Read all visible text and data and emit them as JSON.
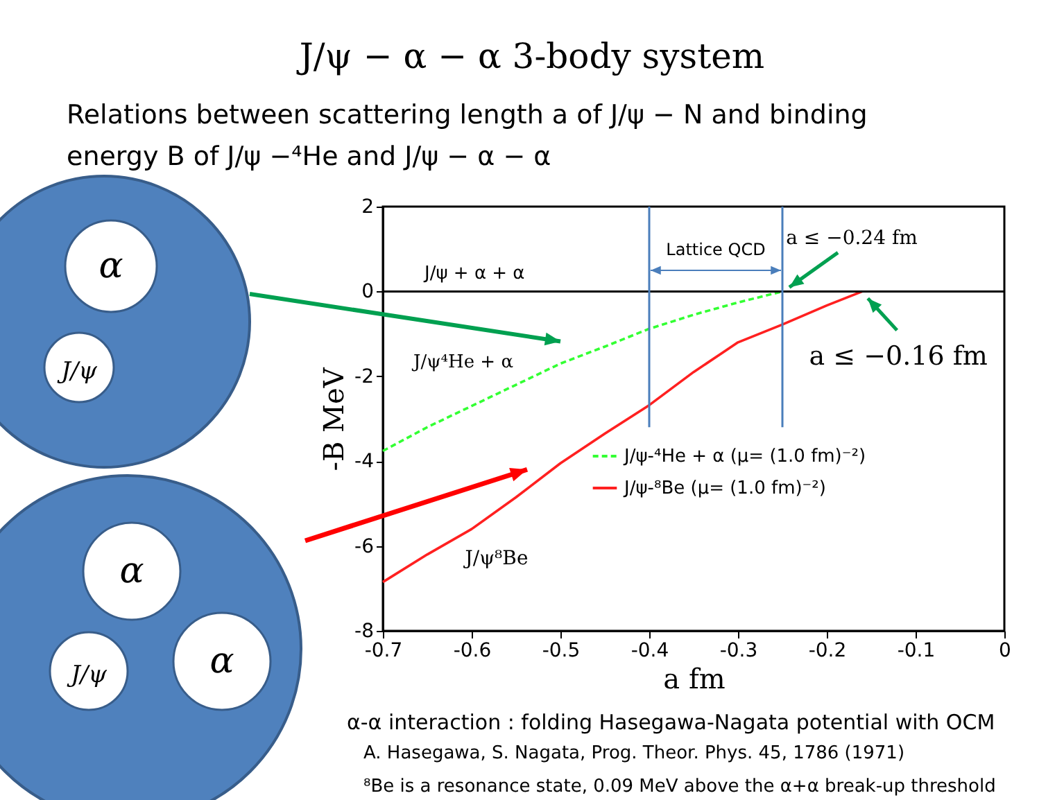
{
  "chart_data": {
    "type": "line",
    "title": "J/ψ − α − α  3-body system",
    "subtitle": "Relations between scattering length a of J/ψ − N and binding energy B of J/ψ −⁴He and J/ψ − α − α",
    "xlabel": "a  fm",
    "ylabel": "-B  MeV",
    "xlim": [
      -0.7,
      0
    ],
    "ylim": [
      -8,
      2
    ],
    "xticks": [
      -0.7,
      -0.6,
      -0.5,
      -0.4,
      -0.3,
      -0.2,
      -0.1,
      0
    ],
    "yticks": [
      -8,
      -6,
      -4,
      -2,
      0,
      2
    ],
    "grid": false,
    "legend": "right",
    "series": [
      {
        "name": "J/ψ-⁴He + α (μ= (1.0 fm)⁻²)",
        "color": "#33ff33",
        "line_style": "dashed",
        "x": [
          -0.7,
          -0.65,
          -0.6,
          -0.55,
          -0.5,
          -0.45,
          -0.4,
          -0.35,
          -0.3,
          -0.25
        ],
        "values": [
          -3.76,
          -3.2,
          -2.7,
          -2.2,
          -1.7,
          -1.3,
          -0.88,
          -0.55,
          -0.26,
          0
        ]
      },
      {
        "name": "J/ψ-⁸Be  (μ= (1.0 fm)⁻²)",
        "color": "#ff2020",
        "line_style": "solid",
        "x": [
          -0.7,
          -0.65,
          -0.6,
          -0.55,
          -0.5,
          -0.45,
          -0.4,
          -0.35,
          -0.3,
          -0.25,
          -0.2,
          -0.16
        ],
        "values": [
          -6.85,
          -6.2,
          -5.6,
          -4.85,
          -4.05,
          -3.35,
          -2.68,
          -1.9,
          -1.2,
          -0.78,
          -0.33,
          0
        ]
      }
    ],
    "ref_lines": [
      {
        "axis": "y",
        "value": 0,
        "label": "J/ψ + α + α",
        "color": "#000000"
      },
      {
        "axis": "x",
        "value": -0.4,
        "label": null,
        "color": "#4a7ebb"
      },
      {
        "axis": "x",
        "value": -0.25,
        "label": null,
        "color": "#4a7ebb"
      }
    ],
    "annotations": [
      "Lattice QCD",
      "J/ψ⁴He + α",
      "J/ψ⁸Be",
      {
        "text": "a ≤ −0.24 fm",
        "x": -0.25,
        "y": 0
      },
      {
        "text": "a ≤ −0.16 fm",
        "x": -0.16,
        "y": 0
      },
      "α",
      "J/ψ",
      "α",
      "J/ψ",
      "α",
      "α-α interaction : folding Hasegawa-Nagata potential with OCM",
      "A. Hasegawa, S. Nagata, Prog. Theor. Phys. 45, 1786 (1971)",
      "⁸Be is a resonance state, 0.09 MeV above the α+α break-up threshold"
    ]
  }
}
